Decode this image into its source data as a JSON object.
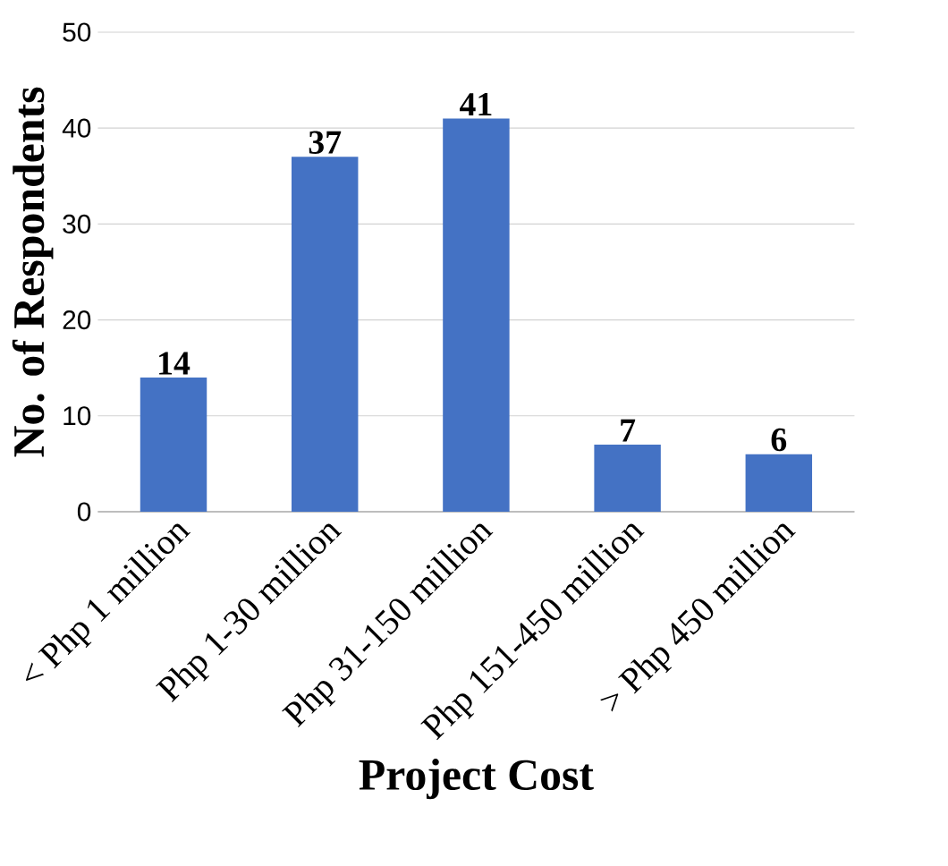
{
  "chart_data": {
    "type": "bar",
    "xlabel": "Project Cost",
    "ylabel": "No. of Respondents",
    "categories": [
      "< Php 1 million",
      "Php 1-30 million",
      "Php 31-150 million",
      "Php 151-450 million",
      "> Php 450 million"
    ],
    "values": [
      14,
      37,
      41,
      7,
      6
    ],
    "color": "#4472c4",
    "ylim": [
      0,
      50
    ],
    "yticks": [
      0,
      10,
      20,
      30,
      40,
      50
    ],
    "grid": "y",
    "data_labels": true
  }
}
